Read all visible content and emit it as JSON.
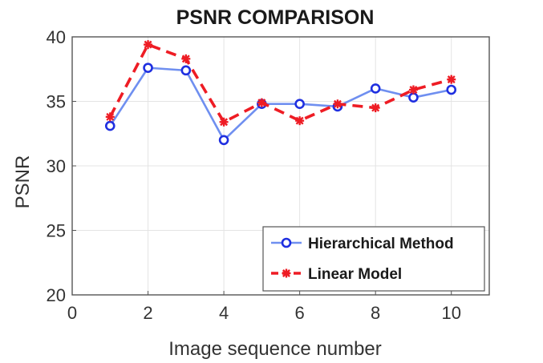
{
  "chart_data": {
    "type": "line",
    "title": "PSNR COMPARISON",
    "xlabel": "Image sequence number",
    "ylabel": "PSNR",
    "xlim": [
      0,
      11
    ],
    "ylim": [
      20,
      40
    ],
    "xticks": [
      0,
      2,
      4,
      6,
      8,
      10
    ],
    "yticks": [
      20,
      25,
      30,
      35,
      40
    ],
    "grid": true,
    "legend_position": "bottom-right",
    "x": [
      1,
      2,
      3,
      4,
      5,
      6,
      7,
      8,
      9,
      10
    ],
    "series": [
      {
        "name": "Hierarchical Method",
        "values": [
          33.1,
          37.6,
          37.4,
          32.0,
          34.8,
          34.8,
          34.6,
          36.0,
          35.3,
          35.9
        ],
        "color": "#1f2fe0",
        "line_color": "#6f8ff0",
        "line_style": "solid",
        "marker": "circle"
      },
      {
        "name": "Linear Model",
        "values": [
          33.8,
          39.4,
          38.3,
          33.4,
          34.9,
          33.5,
          34.8,
          34.5,
          35.9,
          36.7
        ],
        "color": "#ee1c24",
        "line_style": "dashed",
        "marker": "star"
      }
    ]
  }
}
